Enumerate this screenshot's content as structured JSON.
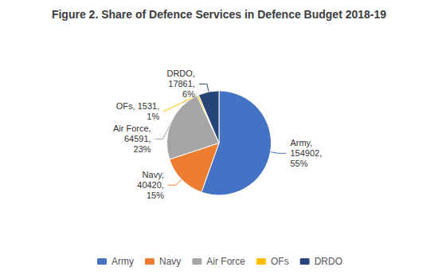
{
  "chart_data": {
    "type": "pie",
    "title": "Figure 2. Share of Defence Services in Defence Budget 2018-19",
    "categories": [
      "Army",
      "Navy",
      "Air Force",
      "OFs",
      "DRDO"
    ],
    "values": [
      154902,
      40420,
      64591,
      1531,
      17861
    ],
    "value_labels": [
      "Army,\n154902,\n55%",
      "Navy,\n40420,\n15%",
      "Air Force,\n64591,\n23%",
      "OFs, 1531,\n1%",
      "DRDO,\n17861,\n6%"
    ],
    "colors": [
      "#4472C4",
      "#ED7D31",
      "#A5A5A5",
      "#FFC000",
      "#264478"
    ],
    "data_labels": true,
    "legend": "bottom"
  }
}
